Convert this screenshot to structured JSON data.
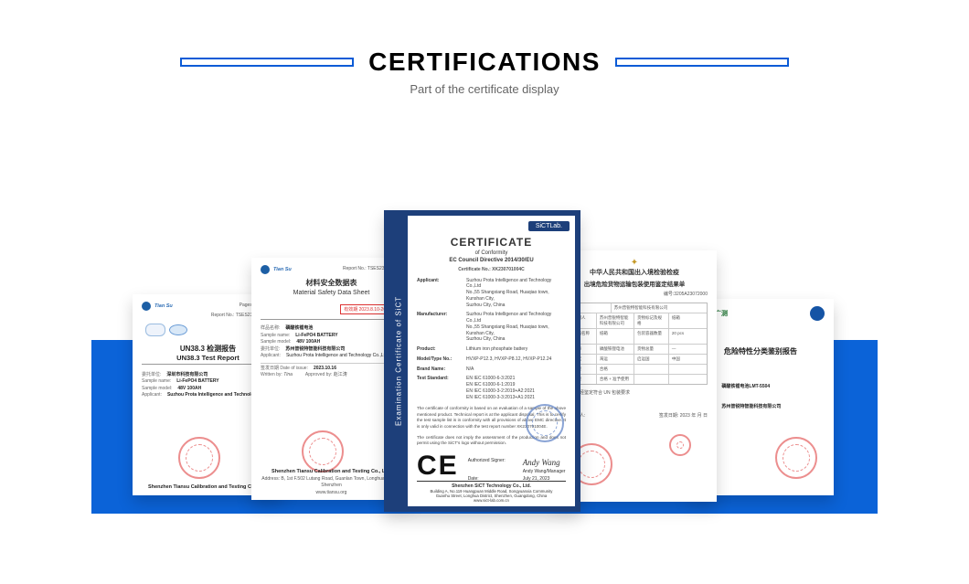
{
  "header": {
    "title": "CERTIFICATIONS",
    "subtitle": "Part of the certificate display"
  },
  "c1": {
    "brand": "Tian Su",
    "pages": "Pages 1-1 Pages",
    "report_no_label": "Report No.:",
    "report_no": "TSES23070186NA",
    "title_zh": "UN38.3 检测报告",
    "title_en": "UN38.3 Test Report",
    "r1_label": "委托单位:",
    "r1_val": "深圳市科技有限公司",
    "r2_label": "Sample name:",
    "r2_val": "Li-FePO4 BATTERY",
    "r3_label": "Sample model:",
    "r3_val": "48V 100AH",
    "r4_label": "Applicant:",
    "r4_val": "Suzhou Prota Intelligence and Technology Co.",
    "footer": "Shenzhen Tiansu Calibration and Testing Co., Ltd."
  },
  "c2": {
    "brand": "Tian Su",
    "report_no_label": "Report No.:",
    "report_no": "TSES230701888",
    "title_zh": "材料安全数据表",
    "title_en": "Material Safety Data Sheet",
    "redbox": "有效期 2023.8.10-2024.8.9",
    "r1_label": "样品名称:",
    "r1_val": "磷酸铁锂电池",
    "r2_label": "Sample name:",
    "r2_val": "Li-FePO4 BATTERY",
    "r3_label": "Sample model:",
    "r3_val": "48V 100AH",
    "r4_label": "委托单位:",
    "r4_val": "苏州普锐特智能科技有限公司",
    "r5_label": "Applicant:",
    "r5_val": "Suzhou Prota Intelligence and Technology Co.,Ltd",
    "sig_label_wt": "Written by:",
    "sig_wt": "Tina",
    "sig_label_ap": "Approved by:",
    "sig_ap": "赵江涛",
    "date_label": "签发日期 Date of issue:",
    "date": "2023.10.16",
    "footer": "Shenzhen Tiansu Calibration and Testing Co., Ltd.",
    "footer_addr": "Address: B, 1st F.502 Lutang Road, Guanlan Town, Longhua District, Shenzhen",
    "footer_web": "www.tiansu.org"
  },
  "c3": {
    "sidebar": "Examination Certificate of SiCT",
    "tag": "SiCTLab.",
    "big": "CERTIFICATE",
    "sub": "of Conformity",
    "sub2": "EC Council Directive 2014/30/EU",
    "certno_label": "Certificate No.:",
    "certno": "XK230701004C",
    "kv": [
      {
        "k": "Applicant:",
        "v": "Suzhou Prota Intelligence and Technology Co.,Ltd\nNo.,55 Shangxiang Road, Huaqiao town, Kunshan City,\nSuzhou City, China"
      },
      {
        "k": "Manufacturer:",
        "v": "Suzhou Prota Intelligence and Technology Co.,Ltd\nNo.,55 Shangxiang Road, Huaqiao town, Kunshan City,\nSuzhou City, China"
      },
      {
        "k": "Product:",
        "v": "Lithium iron phosphate battery"
      },
      {
        "k": "Model/Type No.:",
        "v": "HVXP-P12.3, HVXP-P8.12, HVXP-P12.24"
      },
      {
        "k": "Brand Name:",
        "v": "N/A"
      },
      {
        "k": "Test Standard:",
        "v": "EN IEC 61000-6-3:2021\nEN IEC 61000-6-1:2019\nEN IEC 61000-3-2:2019+A2:2021\nEN IEC 61000-3-3:2013+A1:2021"
      }
    ],
    "para1": "The certificate of conformity is based on an evaluation of a sample of the above mentioned product. Technical report is at the applicant disposal. This is to certify the test sample list is in conformity with all provisions of above EMC directive. It is only valid in connection with the test report number XK230701004E.",
    "para2": "The certificate does not imply the assessment of the production and does not permit using the SiCT's logo without permission.",
    "ce": "CE",
    "auth_label": "Authorized Signer:",
    "auth_name": "Andy Wang/Manager",
    "auth_sig": "Andy Wang",
    "date_label": "Date:",
    "date": "July 21, 2023",
    "foot_company": "Shenzhen SiCT Technology Co., Ltd.",
    "foot_addr": "Building A, No.119 Huangpuan Middle Road, Songyuanxia Community\nGuanhu Street, Longhua District, Shenzhen, Guangdong, China",
    "foot_web": "www.sict-lab.com.cn"
  },
  "c4": {
    "title1": "中华人民共和国出入境检验检疫",
    "title2": "出境危险货物运输包装使用鉴定结果单",
    "no_label": "编号:",
    "no": "3205A23072000",
    "rows": [
      [
        "申请人",
        "苏州普锐特智能科技有限公司"
      ],
      [
        "包装使用人",
        "苏州普锐特智能科技有限公司",
        "货物标记及规格",
        "纸箱"
      ],
      [
        "包装容器名称及规格",
        "纸箱",
        "包装容器数量",
        "20 pcs"
      ],
      [
        "货物名称",
        "磷酸铁锂电池",
        "货物总量",
        "—"
      ],
      [
        "运输方式",
        "海运",
        "启运国",
        "中国"
      ],
      [
        "检验结果",
        "合格",
        "",
        ""
      ],
      [
        "鉴定结果",
        "合格 + 准予使用",
        "",
        ""
      ]
    ],
    "result_line": "以上货物经鉴定符合 UN 包装要求",
    "date_label": "签发日期:",
    "date": "2023 年   月   日",
    "sign_label": "授权签字人:"
  },
  "c5": {
    "brand": "中广测",
    "title": "危险特性分类鉴别报告",
    "r1_label": "样品名称:",
    "r1_val": "磷酸铁锂电池LMT-5504",
    "r2_label": "委托单位:",
    "r2_val": "苏州普锐特智能科技有限公司",
    "stamp_txt": ""
  }
}
